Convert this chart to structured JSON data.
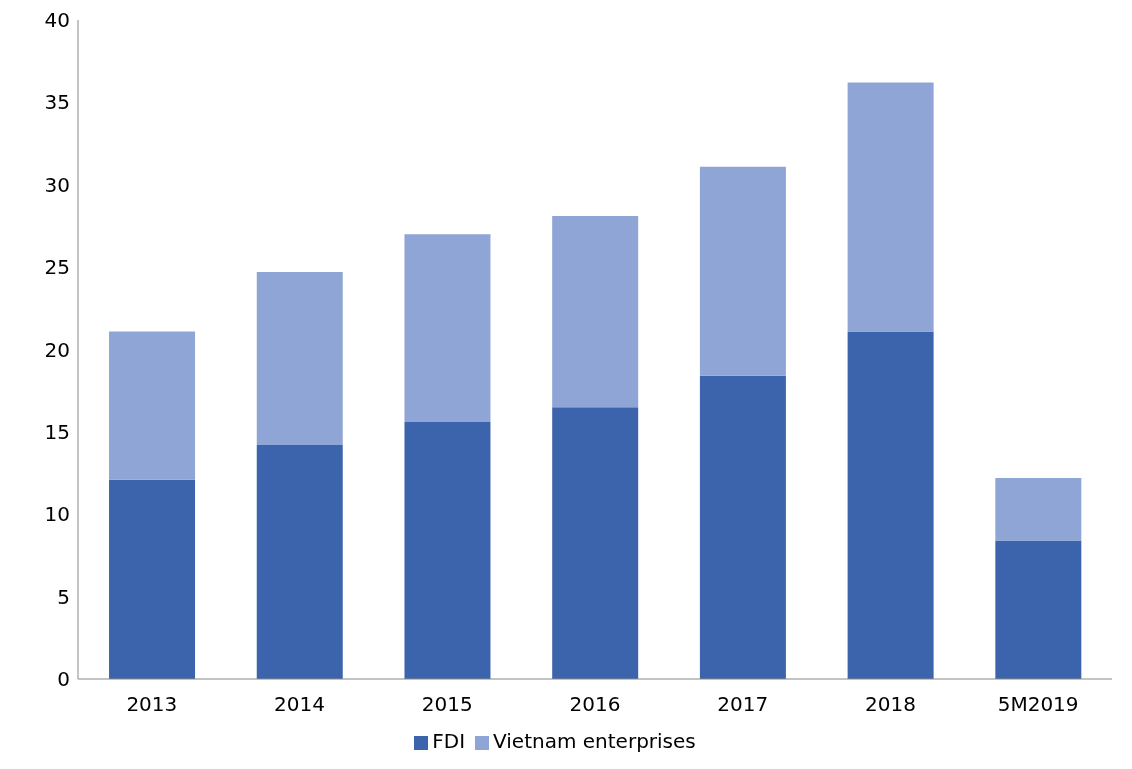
{
  "chart_data": {
    "type": "bar",
    "stacked": true,
    "categories": [
      "2013",
      "2014",
      "2015",
      "2016",
      "2017",
      "2018",
      "5M2019"
    ],
    "series": [
      {
        "name": "FDI",
        "color": "#3c64ac",
        "values": [
          12.1,
          14.2,
          15.6,
          16.5,
          18.4,
          21.1,
          8.4
        ]
      },
      {
        "name": "Vietnam enterprises",
        "color": "#8fa5d5",
        "values": [
          9.0,
          10.5,
          11.4,
          11.6,
          12.7,
          15.1,
          3.8
        ]
      }
    ],
    "ylim": [
      0,
      40
    ],
    "yticks": [
      0,
      5,
      10,
      15,
      20,
      25,
      30,
      35,
      40
    ],
    "grid": false,
    "legend": "bottom"
  }
}
